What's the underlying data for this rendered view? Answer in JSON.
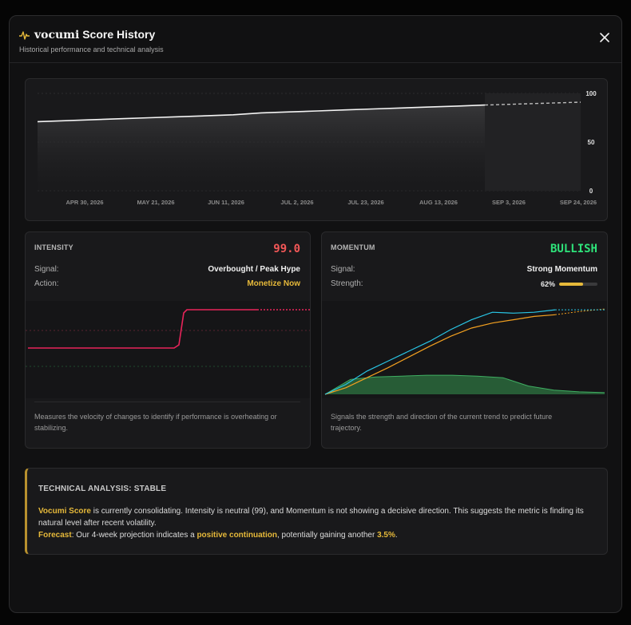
{
  "header": {
    "brand": "vocumi",
    "title_rest": "Score History",
    "subtitle": "Historical performance and technical analysis",
    "pulse_icon": "pulse-icon",
    "close_icon": "close-icon"
  },
  "colors": {
    "accent": "#e6b93a",
    "intensity": "#e8245a",
    "intensity_value": "#f25757",
    "bullish": "#2ee37a",
    "momentum_fast": "#29c6e6",
    "momentum_slow": "#f2a020",
    "histogram": "#2f7a45"
  },
  "chart_data": [
    {
      "type": "line",
      "title": "",
      "x_tick_labels": [
        "APR 30, 2026",
        "MAY 21, 2026",
        "JUN 11, 2026",
        "JUL 2, 2026",
        "JUL 23, 2026",
        "AUG 13, 2026",
        "SEP 3, 2026",
        "SEP 24, 2026"
      ],
      "y_tick_labels": [
        "100",
        "50",
        "0"
      ],
      "ylim": [
        0,
        100
      ],
      "series": [
        {
          "values": [
            71,
            72,
            73,
            74,
            75,
            76,
            77,
            78,
            80,
            81,
            82,
            83,
            84,
            85,
            86,
            87,
            88
          ],
          "style": "solid"
        },
        {
          "values": [
            88,
            89,
            90,
            91
          ],
          "style": "dashed",
          "forecast": true
        }
      ]
    },
    {
      "type": "line",
      "ylim": [
        0,
        100
      ],
      "series": [
        {
          "values": [
            51,
            51,
            51,
            51,
            51,
            51,
            51,
            51,
            99,
            99,
            99,
            99
          ],
          "style": "solid"
        },
        {
          "values": [
            99,
            99,
            99
          ],
          "style": "dotted",
          "forecast": true
        }
      ]
    },
    {
      "type": "line",
      "ylim": [
        0,
        100
      ],
      "series": [
        {
          "values": [
            0,
            12,
            28,
            40,
            52,
            64,
            78,
            90,
            99,
            98,
            99,
            102
          ],
          "style": "solid"
        },
        {
          "values": [
            102,
            102,
            102
          ],
          "style": "dotted",
          "forecast": true
        },
        {
          "values": [
            0,
            8,
            20,
            32,
            45,
            58,
            70,
            80,
            86,
            90,
            94,
            96
          ],
          "style": "solid"
        },
        {
          "values": [
            96,
            100,
            103
          ],
          "style": "dotted",
          "forecast": true
        },
        {
          "values": [
            0,
            18,
            21,
            22,
            23,
            23,
            22,
            20,
            10,
            5,
            3,
            2
          ],
          "style": "area"
        }
      ]
    }
  ],
  "intensity": {
    "label": "INTENSITY",
    "value": "99.0",
    "signal_label": "Signal:",
    "signal_value": "Overbought / Peak Hype",
    "action_label": "Action:",
    "action_value": "Monetize Now",
    "description": "Measures the velocity of changes to identify if performance is overheating or stabilizing."
  },
  "momentum": {
    "label": "MOMENTUM",
    "value": "BULLISH",
    "signal_label": "Signal:",
    "signal_value": "Strong Momentum",
    "strength_label": "Strength:",
    "strength_text": "62%",
    "strength_fraction": 0.62,
    "description": "Signals the strength and direction of the current trend to predict future trajectory."
  },
  "analysis": {
    "title": "TECHNICAL ANALYSIS: STABLE",
    "brand": "Vocumi Score",
    "line1": " is currently consolidating. Intensity is neutral (99), and Momentum is not showing a decisive direction. This suggests the metric is finding its natural level after recent volatility.",
    "forecast_label": "Forecast",
    "forecast_text_a": ": Our 4-week projection indicates a ",
    "forecast_highlight": "positive continuation",
    "forecast_text_b": ", potentially gaining another ",
    "forecast_pct": "3.5%",
    "forecast_end": "."
  }
}
